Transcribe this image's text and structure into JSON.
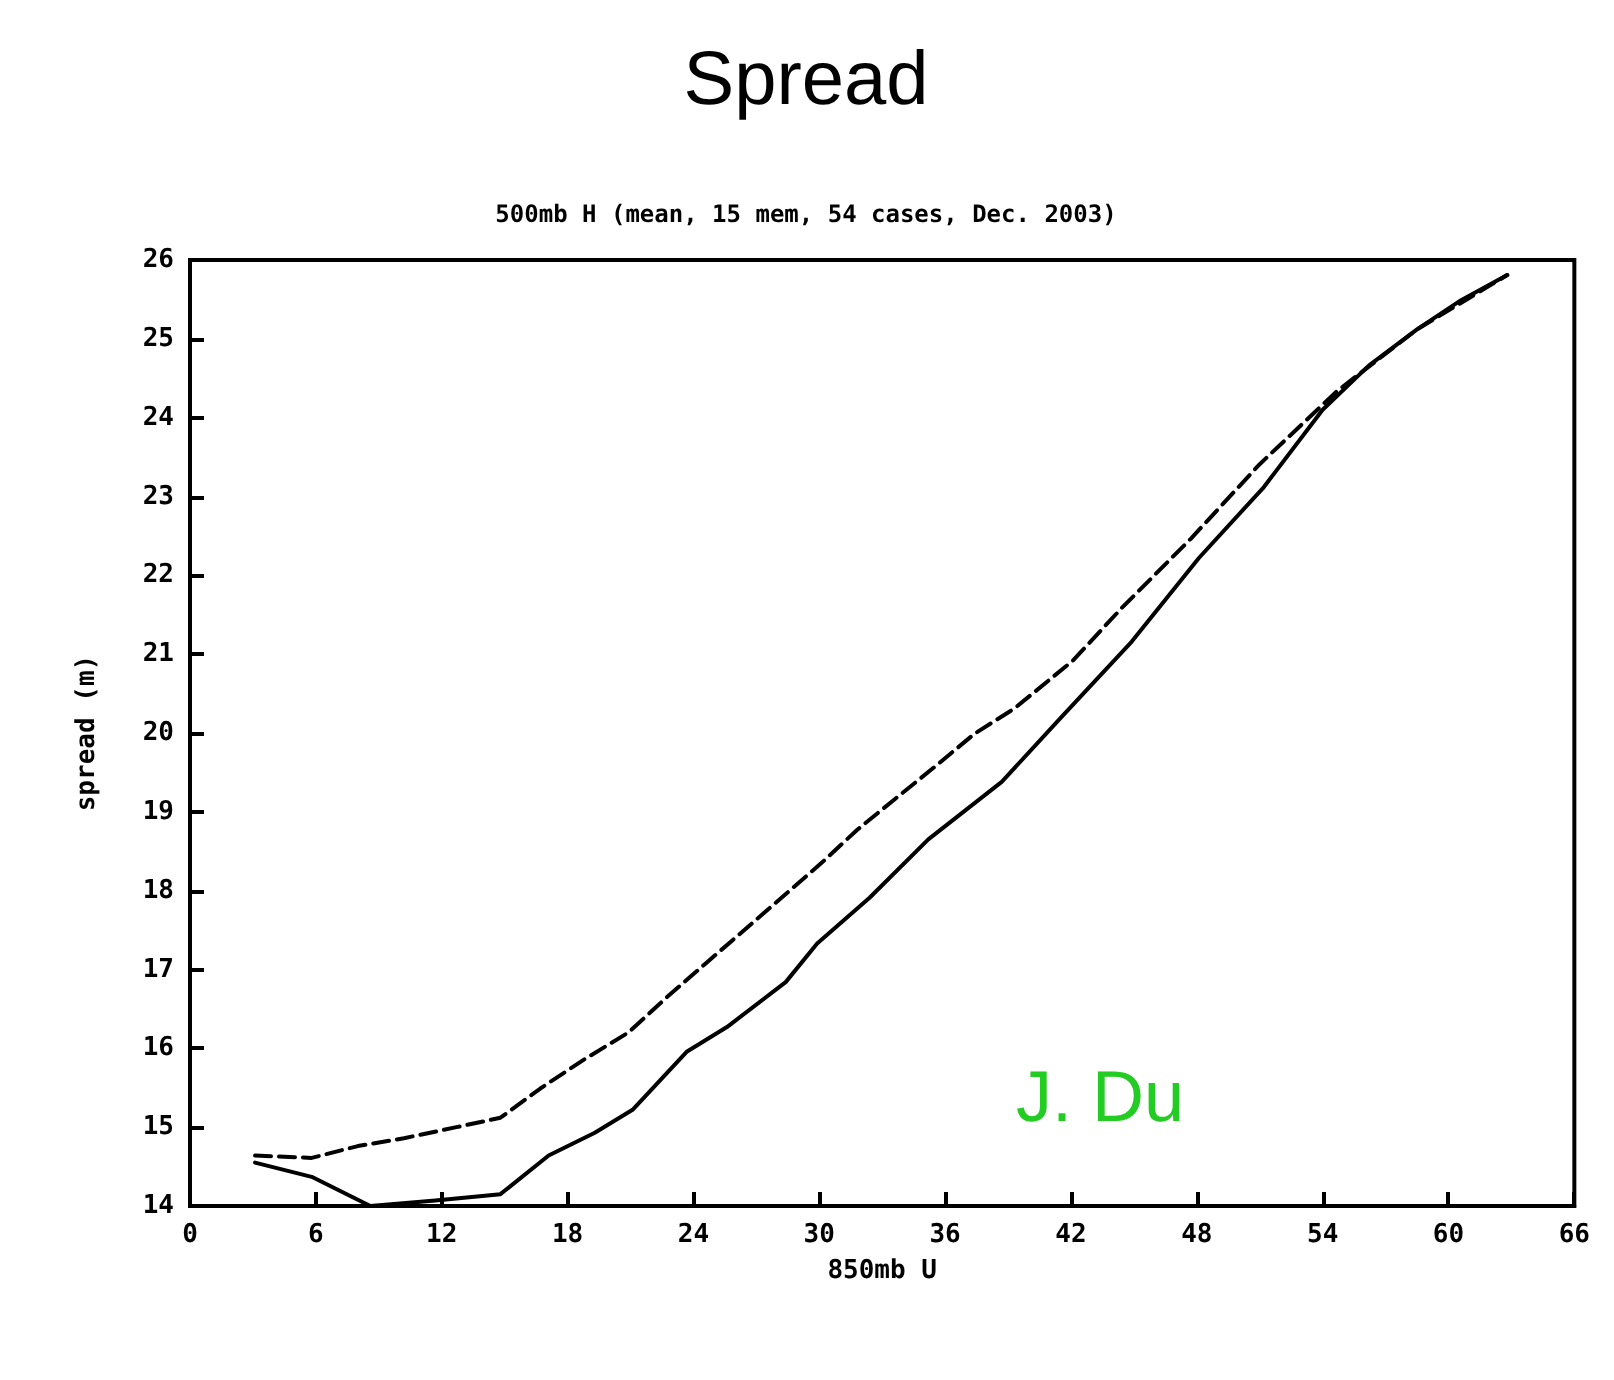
{
  "chart_data": {
    "type": "line",
    "title": "Spread",
    "subtitle": "500mb H (mean, 15 mem, 54 cases, Dec. 2003)",
    "xlabel": "850mb U",
    "ylabel": "spread (m)",
    "annotations": [
      "J. Du"
    ],
    "xlim": [
      0,
      66
    ],
    "xticks": [
      0,
      6,
      12,
      18,
      24,
      30,
      36,
      42,
      48,
      54,
      60,
      66
    ],
    "ylim": [
      14,
      26
    ],
    "yticks": [
      14,
      15,
      16,
      17,
      18,
      19,
      20,
      21,
      22,
      23,
      24,
      25,
      26
    ],
    "grid": false,
    "marker": "none",
    "series": [
      {
        "color": "#000000",
        "line_style": "solid",
        "x": [
          3.1,
          5.8,
          8.6,
          11.7,
          14.8,
          17.1,
          19.3,
          21.1,
          23.7,
          25.6,
          28.4,
          29.9,
          32.4,
          35.2,
          38.7,
          41.5,
          44.9,
          48.1,
          51.2,
          54.0,
          56.2,
          58.5,
          60.6,
          62.8
        ],
        "values": [
          14.55,
          14.37,
          14.0,
          14.07,
          14.15,
          14.64,
          14.93,
          15.22,
          15.96,
          16.27,
          16.84,
          17.33,
          17.91,
          18.65,
          19.38,
          20.19,
          21.16,
          22.22,
          23.12,
          24.1,
          24.66,
          25.12,
          25.49,
          25.81
        ]
      },
      {
        "color": "#000000",
        "line_style": "dashed",
        "x": [
          3.1,
          5.8,
          8.0,
          10.2,
          12.7,
          14.8,
          16.7,
          18.8,
          20.9,
          22.7,
          24.6,
          28.2,
          30.1,
          31.8,
          33.6,
          35.5,
          37.4,
          39.3,
          42.1,
          44.4,
          47.7,
          51.0,
          54.7,
          58.5,
          62.8
        ],
        "values": [
          14.64,
          14.61,
          14.76,
          14.86,
          15.0,
          15.12,
          15.49,
          15.86,
          16.2,
          16.64,
          17.08,
          17.91,
          18.35,
          18.77,
          19.16,
          19.57,
          19.99,
          20.31,
          20.92,
          21.58,
          22.46,
          23.41,
          24.34,
          25.12,
          25.81
        ]
      }
    ]
  }
}
